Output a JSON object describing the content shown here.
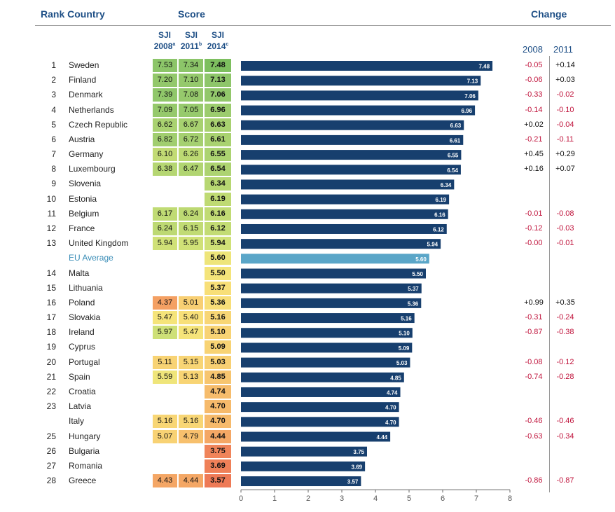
{
  "headers": {
    "rank_country": "Rank Country",
    "score": "Score",
    "change": "Change",
    "sji": "SJI",
    "col2008": "2008",
    "col2008_sup": "a",
    "col2011": "2011",
    "col2011_sup": "b",
    "col2014": "2014",
    "col2014_sup": "c",
    "chg2008": "2008",
    "chg2011": "2011"
  },
  "rows": [
    {
      "rank": "1",
      "country": "Sweden",
      "s2008": "7.53",
      "s2011": "7.34",
      "s2014": "7.48",
      "c2008": "-0.05",
      "c2011": "+0.14",
      "bg2008": "#8cc569",
      "bg2011": "#8cc569",
      "bg2014": "#7dbf5f"
    },
    {
      "rank": "2",
      "country": "Finland",
      "s2008": "7.20",
      "s2011": "7.10",
      "s2014": "7.13",
      "c2008": "-0.06",
      "c2011": "+0.03",
      "bg2008": "#93c86b",
      "bg2011": "#95c96c",
      "bg2014": "#8ec66a"
    },
    {
      "rank": "3",
      "country": "Denmark",
      "s2008": "7.39",
      "s2011": "7.08",
      "s2014": "7.06",
      "c2008": "-0.33",
      "c2011": "-0.02",
      "bg2008": "#90c76a",
      "bg2011": "#96c96c",
      "bg2014": "#92c76b"
    },
    {
      "rank": "4",
      "country": "Netherlands",
      "s2008": "7.09",
      "s2011": "7.05",
      "s2014": "6.96",
      "c2008": "-0.14",
      "c2011": "-0.10",
      "bg2008": "#96c96c",
      "bg2011": "#97ca6d",
      "bg2014": "#9ccc6e"
    },
    {
      "rank": "5",
      "country": "Czech Republic",
      "s2008": "6.62",
      "s2011": "6.67",
      "s2014": "6.63",
      "c2008": "+0.02",
      "c2011": "-0.04",
      "bg2008": "#a9d270",
      "bg2011": "#a7d170",
      "bg2014": "#a8d170"
    },
    {
      "rank": "6",
      "country": "Austria",
      "s2008": "6.82",
      "s2011": "6.72",
      "s2014": "6.61",
      "c2008": "-0.21",
      "c2011": "-0.11",
      "bg2008": "#a1ce6f",
      "bg2011": "#a5d070",
      "bg2014": "#a9d270"
    },
    {
      "rank": "7",
      "country": "Germany",
      "s2008": "6.10",
      "s2011": "6.26",
      "s2014": "6.55",
      "c2008": "+0.45",
      "c2011": "+0.29",
      "bg2008": "#c2db74",
      "bg2011": "#bcd973",
      "bg2014": "#acd371"
    },
    {
      "rank": "8",
      "country": "Luxembourg",
      "s2008": "6.38",
      "s2011": "6.47",
      "s2014": "6.54",
      "c2008": "+0.16",
      "c2011": "+0.07",
      "bg2008": "#b5d672",
      "bg2011": "#b1d571",
      "bg2014": "#add371"
    },
    {
      "rank": "9",
      "country": "Slovenia",
      "s2008": "",
      "s2011": "",
      "s2014": "6.34",
      "c2008": "",
      "c2011": "",
      "bg2008": "",
      "bg2011": "",
      "bg2014": "#b7d772"
    },
    {
      "rank": "10",
      "country": "Estonia",
      "s2008": "",
      "s2011": "",
      "s2014": "6.19",
      "c2008": "",
      "c2011": "",
      "bg2008": "",
      "bg2011": "",
      "bg2014": "#bfda73"
    },
    {
      "rank": "11",
      "country": "Belgium",
      "s2008": "6.17",
      "s2011": "6.24",
      "s2014": "6.16",
      "c2008": "-0.01",
      "c2011": "-0.08",
      "bg2008": "#c0db74",
      "bg2011": "#bdd973",
      "bg2014": "#c1db74"
    },
    {
      "rank": "12",
      "country": "France",
      "s2008": "6.24",
      "s2011": "6.15",
      "s2014": "6.12",
      "c2008": "-0.12",
      "c2011": "-0.03",
      "bg2008": "#bdd973",
      "bg2011": "#c1db74",
      "bg2014": "#c3dc74"
    },
    {
      "rank": "13",
      "country": "United Kingdom",
      "s2008": "5.94",
      "s2011": "5.95",
      "s2014": "5.94",
      "c2008": "-0.00",
      "c2011": "-0.01",
      "bg2008": "#d0e177",
      "bg2011": "#d0e177",
      "bg2014": "#d0e177"
    },
    {
      "rank": "",
      "country": "EU Average",
      "s2008": "",
      "s2011": "",
      "s2014": "5.60",
      "c2008": "",
      "c2011": "",
      "bg2008": "",
      "bg2011": "",
      "bg2014": "#eee57a",
      "eu": true
    },
    {
      "rank": "14",
      "country": "Malta",
      "s2008": "",
      "s2011": "",
      "s2014": "5.50",
      "c2008": "",
      "c2011": "",
      "bg2008": "",
      "bg2011": "",
      "bg2014": "#f4e47a"
    },
    {
      "rank": "15",
      "country": "Lithuania",
      "s2008": "",
      "s2011": "",
      "s2014": "5.37",
      "c2008": "",
      "c2011": "",
      "bg2008": "",
      "bg2011": "",
      "bg2014": "#f8df78"
    },
    {
      "rank": "16",
      "country": "Poland",
      "s2008": "4.37",
      "s2011": "5.01",
      "s2014": "5.36",
      "c2008": "+0.99",
      "c2011": "+0.35",
      "bg2008": "#f4a063",
      "bg2011": "#f8cf73",
      "bg2014": "#f8de78"
    },
    {
      "rank": "17",
      "country": "Slovakia",
      "s2008": "5.47",
      "s2011": "5.40",
      "s2014": "5.16",
      "c2008": "-0.31",
      "c2011": "-0.24",
      "bg2008": "#f5e47a",
      "bg2011": "#f8e079",
      "bg2014": "#f8d675"
    },
    {
      "rank": "18",
      "country": "Ireland",
      "s2008": "5.97",
      "s2011": "5.47",
      "s2014": "5.10",
      "c2008": "-0.87",
      "c2011": "-0.38",
      "bg2008": "#cee077",
      "bg2011": "#f5e47a",
      "bg2014": "#f8d374"
    },
    {
      "rank": "19",
      "country": "Cyprus",
      "s2008": "",
      "s2011": "",
      "s2014": "5.09",
      "c2008": "",
      "c2011": "",
      "bg2008": "",
      "bg2011": "",
      "bg2014": "#f8d374"
    },
    {
      "rank": "20",
      "country": "Portugal",
      "s2008": "5.11",
      "s2011": "5.15",
      "s2014": "5.03",
      "c2008": "-0.08",
      "c2011": "-0.12",
      "bg2008": "#f8d374",
      "bg2011": "#f8d575",
      "bg2014": "#f8d073"
    },
    {
      "rank": "21",
      "country": "Spain",
      "s2008": "5.59",
      "s2011": "5.13",
      "s2014": "4.85",
      "c2008": "-0.74",
      "c2011": "-0.28",
      "bg2008": "#efe57a",
      "bg2011": "#f8d474",
      "bg2014": "#f7c56f"
    },
    {
      "rank": "22",
      "country": "Croatia",
      "s2008": "",
      "s2011": "",
      "s2014": "4.74",
      "c2008": "",
      "c2011": "",
      "bg2008": "",
      "bg2011": "",
      "bg2014": "#f6bc6c"
    },
    {
      "rank": "23",
      "country": "Latvia",
      "s2008": "",
      "s2011": "",
      "s2014": "4.70",
      "c2008": "",
      "c2011": "",
      "bg2008": "",
      "bg2011": "",
      "bg2014": "#f6ba6b"
    },
    {
      "rank": "",
      "country": "Italy",
      "s2008": "5.16",
      "s2011": "5.16",
      "s2014": "4.70",
      "c2008": "-0.46",
      "c2011": "-0.46",
      "bg2008": "#f8d675",
      "bg2011": "#f8d675",
      "bg2014": "#f6ba6b"
    },
    {
      "rank": "25",
      "country": "Hungary",
      "s2008": "5.07",
      "s2011": "4.79",
      "s2014": "4.44",
      "c2008": "-0.63",
      "c2011": "-0.34",
      "bg2008": "#f8d274",
      "bg2011": "#f7c06d",
      "bg2014": "#f4a765"
    },
    {
      "rank": "26",
      "country": "Bulgaria",
      "s2008": "",
      "s2011": "",
      "s2014": "3.75",
      "c2008": "",
      "c2011": "",
      "bg2008": "",
      "bg2011": "",
      "bg2014": "#f0845a"
    },
    {
      "rank": "27",
      "country": "Romania",
      "s2008": "",
      "s2011": "",
      "s2014": "3.69",
      "c2008": "",
      "c2011": "",
      "bg2008": "",
      "bg2011": "",
      "bg2014": "#ef8058"
    },
    {
      "rank": "28",
      "country": "Greece",
      "s2008": "4.43",
      "s2011": "4.44",
      "s2014": "3.57",
      "c2008": "-0.86",
      "c2011": "-0.87",
      "bg2008": "#f4a665",
      "bg2011": "#f4a765",
      "bg2014": "#ee7a56"
    }
  ],
  "chart_data": {
    "type": "bar",
    "orientation": "horizontal",
    "categories": [
      "Sweden",
      "Finland",
      "Denmark",
      "Netherlands",
      "Czech Republic",
      "Austria",
      "Germany",
      "Luxembourg",
      "Slovenia",
      "Estonia",
      "Belgium",
      "France",
      "United Kingdom",
      "EU Average",
      "Malta",
      "Lithuania",
      "Poland",
      "Slovakia",
      "Ireland",
      "Cyprus",
      "Portugal",
      "Spain",
      "Croatia",
      "Latvia",
      "Italy",
      "Hungary",
      "Bulgaria",
      "Romania",
      "Greece"
    ],
    "values": [
      7.48,
      7.13,
      7.06,
      6.96,
      6.63,
      6.61,
      6.55,
      6.54,
      6.34,
      6.19,
      6.16,
      6.12,
      5.94,
      5.6,
      5.5,
      5.37,
      5.36,
      5.16,
      5.1,
      5.09,
      5.03,
      4.85,
      4.74,
      4.7,
      4.7,
      4.44,
      3.75,
      3.69,
      3.57
    ],
    "labels": [
      "7.48",
      "7.13",
      "7.06",
      "6.96",
      "6.63",
      "6.61",
      "6.55",
      "6.54",
      "6.34",
      "6.19",
      "6.16",
      "6.12",
      "5.94",
      "5.60",
      "5.50",
      "5.37",
      "5.36",
      "5.16",
      "5.10",
      "5.09",
      "5.03",
      "4.85",
      "4.74",
      "4.70",
      "4.70",
      "4.44",
      "3.75",
      "3.69",
      "3.57"
    ],
    "highlight_index": 13,
    "xlim": [
      0,
      8
    ],
    "xticks": [
      "0",
      "1",
      "2",
      "3",
      "4",
      "5",
      "6",
      "7",
      "8"
    ],
    "grid": false,
    "colors": {
      "bar": "#173f6e",
      "highlight": "#5aa6c8",
      "bar_label": "#ffffff",
      "axis": "#666666"
    }
  }
}
